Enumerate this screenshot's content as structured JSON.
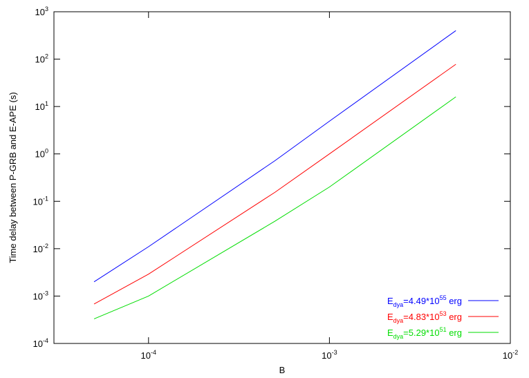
{
  "chart_data": {
    "type": "line",
    "x_label": "B",
    "y_label": "Time delay between P-GRB and E-APE (s)",
    "xscale": "log",
    "yscale": "log",
    "legend": "lower right",
    "x": [
      5e-05,
      0.0001,
      0.0005,
      0.001,
      0.005
    ],
    "series": [
      {
        "name": [
          "E",
          "dya",
          "=4.49*10",
          "55",
          " erg"
        ],
        "color": "#0000ff",
        "values": [
          0.002,
          0.011,
          0.72,
          4.9,
          400
        ]
      },
      {
        "name": [
          "E",
          "dya",
          "=4.83*10",
          "53",
          " erg"
        ],
        "color": "#ff0000",
        "values": [
          0.00068,
          0.0029,
          0.155,
          1.0,
          78
        ]
      },
      {
        "name": [
          "E",
          "dya",
          "=5.29*10",
          "51",
          " erg"
        ],
        "color": "#00dd00",
        "values": [
          0.00033,
          0.001,
          0.038,
          0.2,
          16
        ]
      }
    ],
    "xlim": [
      3e-05,
      0.01
    ],
    "ylim": [
      0.0001,
      1000
    ],
    "xticks": [
      {
        "value": 0.0001,
        "label": "10",
        "exp": "-4"
      },
      {
        "value": 0.001,
        "label": "10",
        "exp": "-3"
      },
      {
        "value": 0.01,
        "label": "10",
        "exp": "-2"
      }
    ],
    "yticks": [
      {
        "value": 0.0001,
        "label": "10",
        "exp": "-4"
      },
      {
        "value": 0.001,
        "label": "10",
        "exp": "-3"
      },
      {
        "value": 0.01,
        "label": "10",
        "exp": "-2"
      },
      {
        "value": 0.1,
        "label": "10",
        "exp": "-1"
      },
      {
        "value": 1,
        "label": "10",
        "exp": "0"
      },
      {
        "value": 10,
        "label": "10",
        "exp": "1"
      },
      {
        "value": 100,
        "label": "10",
        "exp": "2"
      },
      {
        "value": 1000,
        "label": "10",
        "exp": "3"
      }
    ]
  }
}
